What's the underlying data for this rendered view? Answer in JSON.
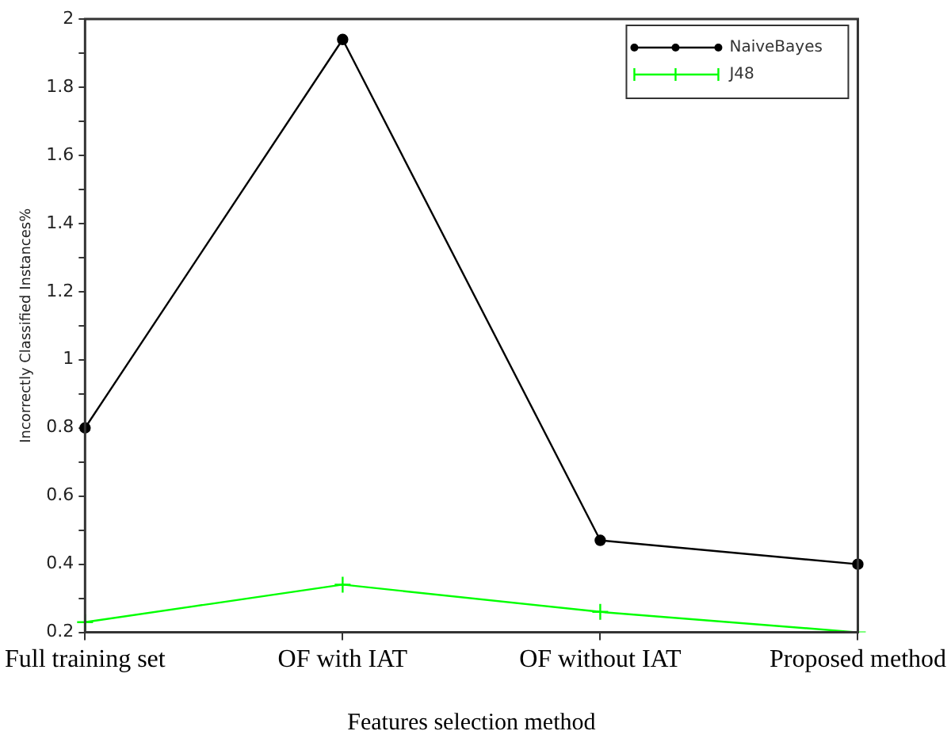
{
  "chart_data": {
    "type": "line",
    "xlabel": "Features selection method",
    "ylabel": "Incorrectly Classified Instances%",
    "categories": [
      "Full training set",
      "OF with IAT",
      "OF without IAT",
      "Proposed method"
    ],
    "series": [
      {
        "name": "NaiveBayes",
        "color": "#000000",
        "marker": "circle",
        "values": [
          0.8,
          1.94,
          0.47,
          0.4
        ]
      },
      {
        "name": "J48",
        "color": "#00ff00",
        "marker": "cross",
        "values": [
          0.23,
          0.34,
          0.26,
          0.2
        ]
      }
    ],
    "ylim": [
      0.2,
      2
    ],
    "yticks": [
      0.2,
      {
        "value": 0.3,
        "label": null
      },
      0.4,
      {
        "value": 0.5,
        "label": null
      },
      0.6,
      {
        "value": 0.7,
        "label": null
      },
      0.8,
      {
        "value": 0.9,
        "label": null
      },
      1,
      {
        "value": 1.1,
        "label": null
      },
      1.2,
      {
        "value": 1.3,
        "label": null
      },
      1.4,
      {
        "value": 1.5,
        "label": null
      },
      1.6,
      {
        "value": 1.7,
        "label": null
      },
      1.8,
      {
        "value": 1.9,
        "label": null
      },
      2
    ],
    "grid": false,
    "legend": "top right",
    "line_style": "solid"
  }
}
